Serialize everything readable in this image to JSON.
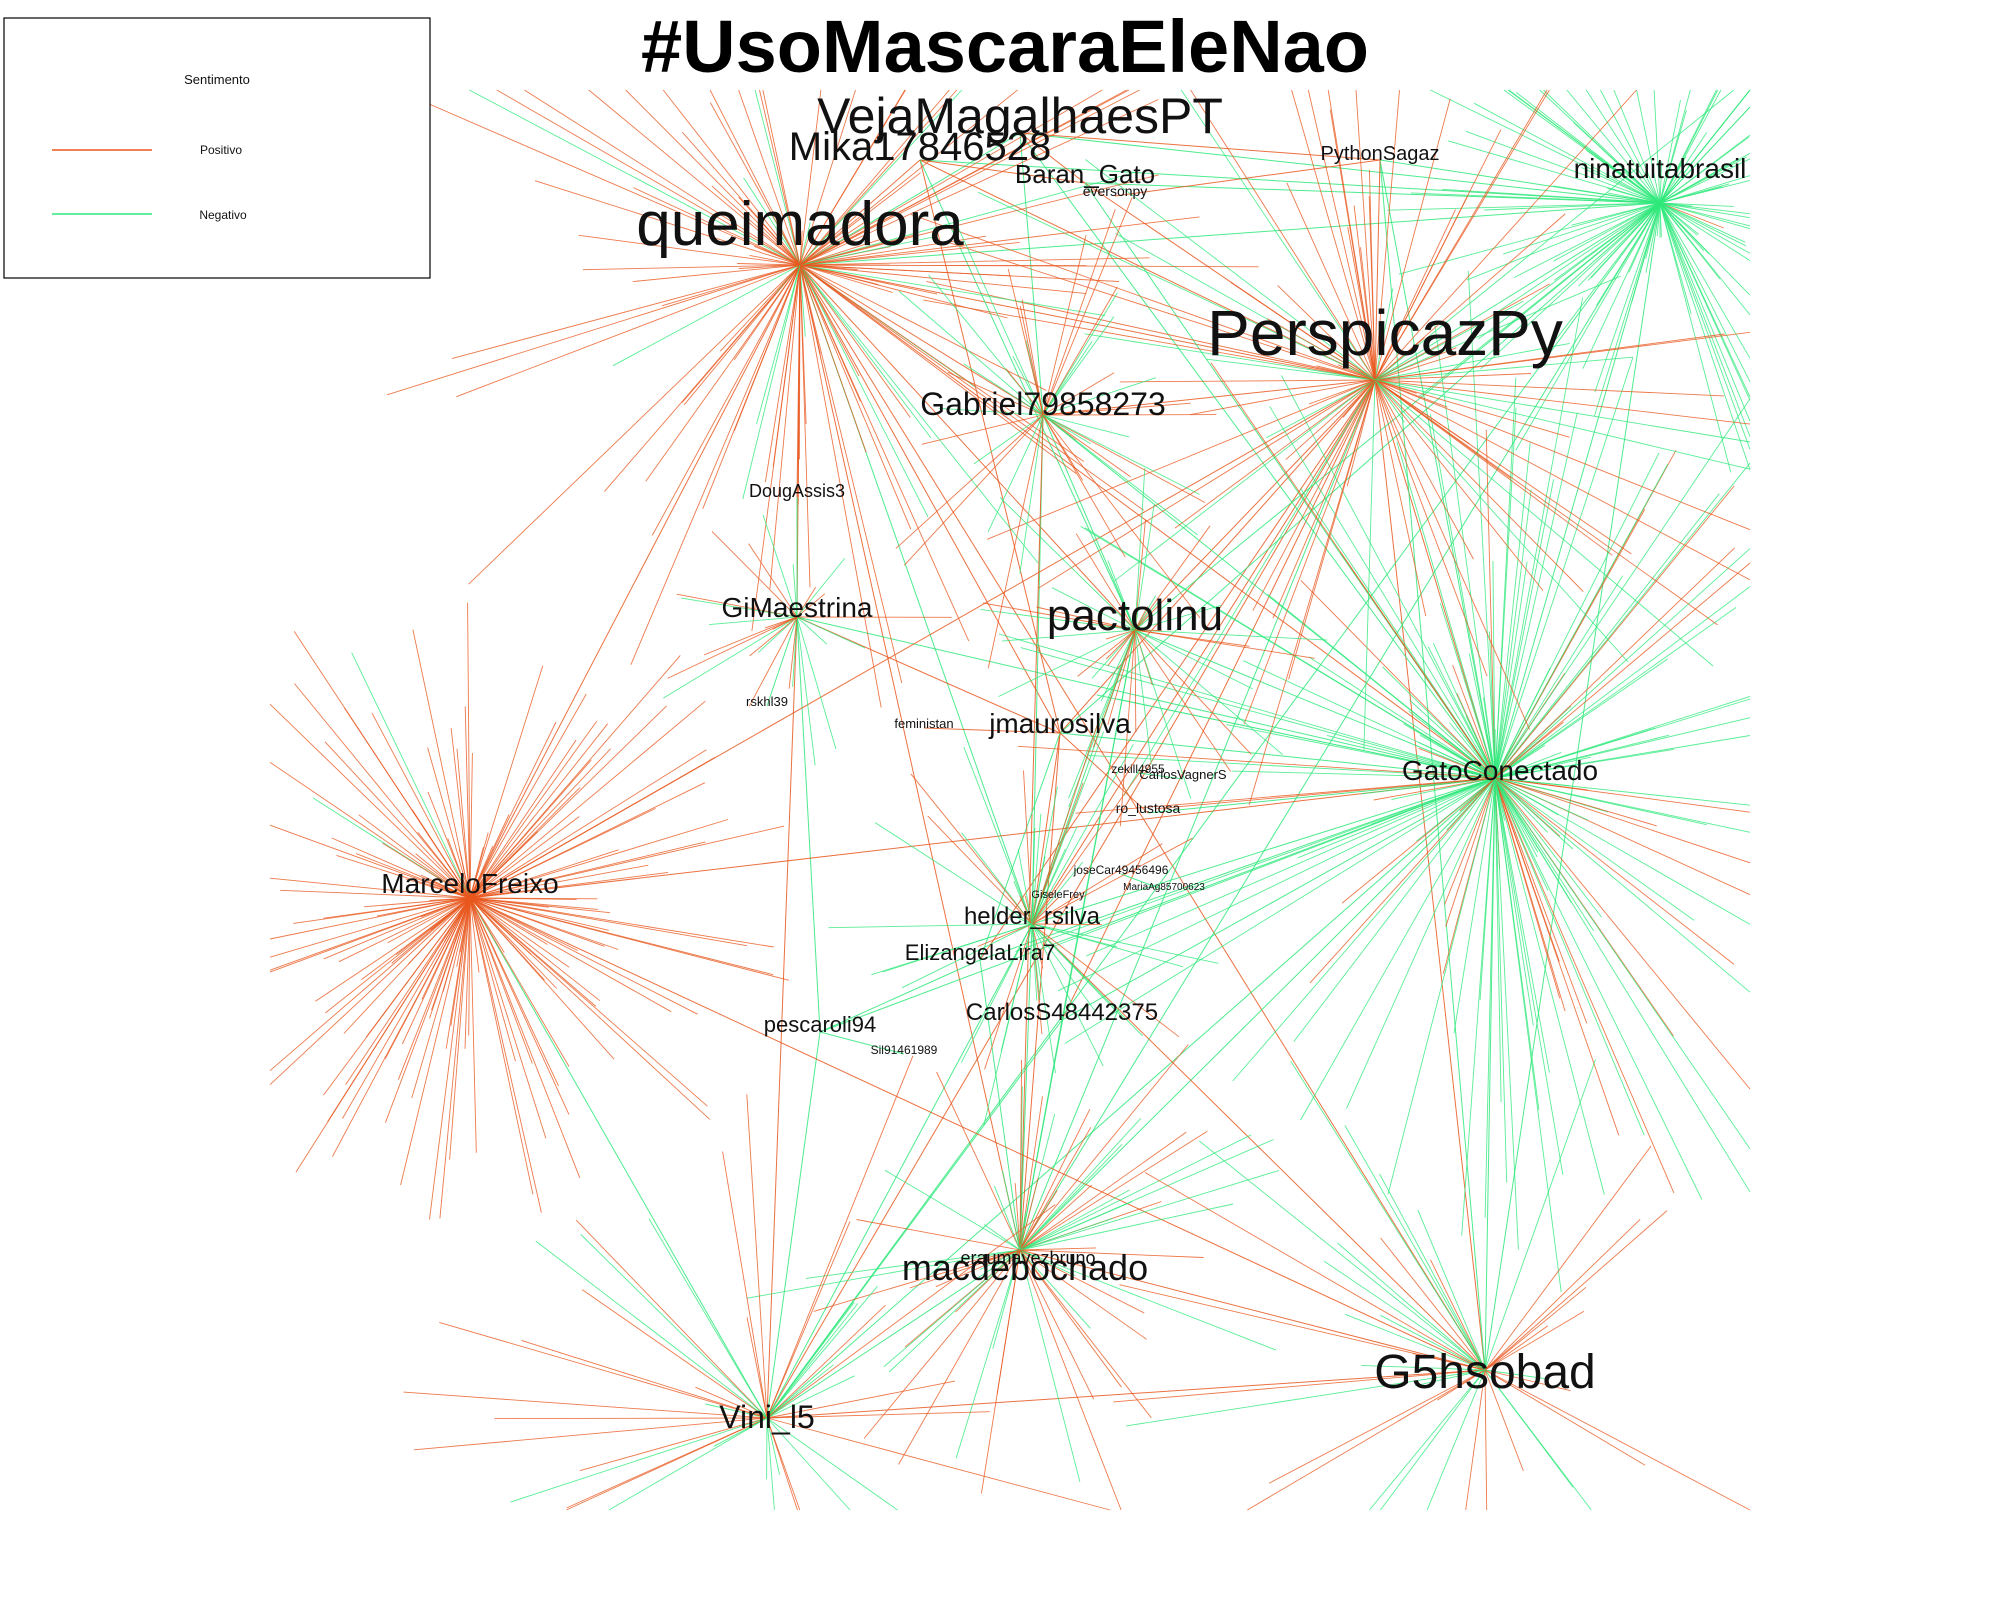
{
  "title": "#UsoMascaraEleNao",
  "legend": {
    "heading": "Sentimento",
    "items": [
      {
        "label": "Positivo",
        "color": "#e8581e"
      },
      {
        "label": "Negativo",
        "color": "#2ee87a"
      }
    ]
  },
  "colors": {
    "positive": "#e8581e",
    "negative": "#2ee87a",
    "background": "#ffffff"
  },
  "nodes": [
    {
      "id": "queimadora",
      "label": "queimadora"
    },
    {
      "id": "PerspicazPy",
      "label": "PerspicazPy"
    },
    {
      "id": "VejaMagalhaesPT",
      "label": "VejaMagalhaesPT"
    },
    {
      "id": "Mika17846528",
      "label": "Mika17846528"
    },
    {
      "id": "Baran_Gato",
      "label": "Baran_Gato"
    },
    {
      "id": "eversonpy",
      "label": "eversonpy"
    },
    {
      "id": "PythonSagaz",
      "label": "PythonSagaz"
    },
    {
      "id": "ninatuitabrasil",
      "label": "ninatuitabrasil"
    },
    {
      "id": "Gabriel79858273",
      "label": "Gabriel79858273"
    },
    {
      "id": "DougAssis3",
      "label": "DougAssis3"
    },
    {
      "id": "GiMaestrina",
      "label": "GiMaestrina"
    },
    {
      "id": "pactolinu",
      "label": "pactolinu"
    },
    {
      "id": "rskhl39",
      "label": "rskhl39"
    },
    {
      "id": "feministan",
      "label": "feministan"
    },
    {
      "id": "jmaurosilva",
      "label": "jmaurosilva"
    },
    {
      "id": "zekill4955",
      "label": "zekill4955"
    },
    {
      "id": "CarlosVagnerS",
      "label": "CarlosVagnerS"
    },
    {
      "id": "ro_lustosa",
      "label": "ro_lustosa"
    },
    {
      "id": "GatoConectado",
      "label": "GatoConectado"
    },
    {
      "id": "MarceloFreixo",
      "label": "MarceloFreixo"
    },
    {
      "id": "joseCar49456496",
      "label": "joseCar49456496"
    },
    {
      "id": "MariaAg",
      "label": "MariaAg85700623"
    },
    {
      "id": "GiseleFrey",
      "label": "GiseleFrey"
    },
    {
      "id": "helder_rsilva",
      "label": "helder_rsilva"
    },
    {
      "id": "ElizangelaLira7",
      "label": "ElizangelaLira7"
    },
    {
      "id": "pescaroli94",
      "label": "pescaroli94"
    },
    {
      "id": "CarlosS48442375",
      "label": "CarlosS48442375"
    },
    {
      "id": "Sil91461989",
      "label": "Sil91461989"
    },
    {
      "id": "eraumavezbruno",
      "label": "eraumavezbruno"
    },
    {
      "id": "macdebochado",
      "label": "macdebochado"
    },
    {
      "id": "G5hsobad",
      "label": "G5hsobad"
    },
    {
      "id": "Vini_l5",
      "label": "Vini_l5"
    }
  ],
  "edges": [
    [
      "queimadora",
      "PerspicazPy",
      "pos"
    ],
    [
      "queimadora",
      "GatoConectado",
      "pos"
    ],
    [
      "queimadora",
      "Mika17846528",
      "pos"
    ],
    [
      "queimadora",
      "VejaMagalhaesPT",
      "neg"
    ],
    [
      "queimadora",
      "Gabriel79858273",
      "pos"
    ],
    [
      "queimadora",
      "jmaurosilva",
      "pos"
    ],
    [
      "queimadora",
      "GiMaestrina",
      "pos"
    ],
    [
      "queimadora",
      "macdebochado",
      "pos"
    ],
    [
      "queimadora",
      "G5hsobad",
      "pos"
    ],
    [
      "queimadora",
      "helder_rsilva",
      "neg"
    ],
    [
      "queimadora",
      "pactolinu",
      "pos"
    ],
    [
      "queimadora",
      "ninatuitabrasil",
      "neg"
    ],
    [
      "PerspicazPy",
      "GatoConectado",
      "pos"
    ],
    [
      "PerspicazPy",
      "pactolinu",
      "pos"
    ],
    [
      "PerspicazPy",
      "jmaurosilva",
      "pos"
    ],
    [
      "PerspicazPy",
      "helder_rsilva",
      "pos"
    ],
    [
      "PerspicazPy",
      "CarlosS48442375",
      "pos"
    ],
    [
      "PerspicazPy",
      "macdebochado",
      "neg"
    ],
    [
      "PerspicazPy",
      "G5hsobad",
      "pos"
    ],
    [
      "PerspicazPy",
      "ninatuitabrasil",
      "neg"
    ],
    [
      "PerspicazPy",
      "Gabriel79858273",
      "pos"
    ],
    [
      "PerspicazPy",
      "Mika17846528",
      "pos"
    ],
    [
      "PerspicazPy",
      "Vini_l5",
      "pos"
    ],
    [
      "PerspicazPy",
      "ElizangelaLira7",
      "pos"
    ],
    [
      "GatoConectado",
      "ninatuitabrasil",
      "neg"
    ],
    [
      "GatoConectado",
      "pactolinu",
      "neg"
    ],
    [
      "GatoConectado",
      "jmaurosilva",
      "neg"
    ],
    [
      "GatoConectado",
      "helder_rsilva",
      "neg"
    ],
    [
      "GatoConectado",
      "ElizangelaLira7",
      "neg"
    ],
    [
      "GatoConectado",
      "CarlosS48442375",
      "neg"
    ],
    [
      "GatoConectado",
      "macdebochado",
      "neg"
    ],
    [
      "GatoConectado",
      "G5hsobad",
      "neg"
    ],
    [
      "GatoConectado",
      "Vini_l5",
      "neg"
    ],
    [
      "GatoConectado",
      "pescaroli94",
      "neg"
    ],
    [
      "GatoConectado",
      "GiMaestrina",
      "neg"
    ],
    [
      "GatoConectado",
      "Gabriel79858273",
      "neg"
    ],
    [
      "GatoConectado",
      "VejaMagalhaesPT",
      "neg"
    ],
    [
      "GatoConectado",
      "PythonSagaz",
      "neg"
    ],
    [
      "GatoConectado",
      "ro_lustosa",
      "neg"
    ],
    [
      "ninatuitabrasil",
      "VejaMagalhaesPT",
      "neg"
    ],
    [
      "ninatuitabrasil",
      "PythonSagaz",
      "neg"
    ],
    [
      "ninatuitabrasil",
      "Baran_Gato",
      "neg"
    ],
    [
      "ninatuitabrasil",
      "G5hsobad",
      "neg"
    ],
    [
      "ninatuitabrasil",
      "pactolinu",
      "neg"
    ],
    [
      "ninatuitabrasil",
      "macdebochado",
      "neg"
    ],
    [
      "ninatuitabrasil",
      "Vini_l5",
      "neg"
    ],
    [
      "ninatuitabrasil",
      "Mika17846528",
      "neg"
    ],
    [
      "ninatuitabrasil",
      "jmaurosilva",
      "neg"
    ],
    [
      "VejaMagalhaesPT",
      "Baran_Gato",
      "pos"
    ],
    [
      "VejaMagalhaesPT",
      "PythonSagaz",
      "pos"
    ],
    [
      "VejaMagalhaesPT",
      "Gabriel79858273",
      "neg"
    ],
    [
      "Mika17846528",
      "Baran_Gato",
      "pos"
    ],
    [
      "Mika17846528",
      "jmaurosilva",
      "pos"
    ],
    [
      "Mika17846528",
      "pactolinu",
      "neg"
    ],
    [
      "Baran_Gato",
      "PerspicazPy",
      "pos"
    ],
    [
      "Baran_Gato",
      "GatoConectado",
      "neg"
    ],
    [
      "eversonpy",
      "PythonSagaz",
      "pos"
    ],
    [
      "PythonSagaz",
      "G5hsobad",
      "neg"
    ],
    [
      "PythonSagaz",
      "PerspicazPy",
      "pos"
    ],
    [
      "Gabriel79858273",
      "helder_rsilva",
      "neg"
    ],
    [
      "Gabriel79858273",
      "pactolinu",
      "neg"
    ],
    [
      "Gabriel79858273",
      "macdebochado",
      "pos"
    ],
    [
      "DougAssis3",
      "GiMaestrina",
      "neg"
    ],
    [
      "DougAssis3",
      "queimadora",
      "pos"
    ],
    [
      "GiMaestrina",
      "Vini_l5",
      "pos"
    ],
    [
      "GiMaestrina",
      "pescaroli94",
      "neg"
    ],
    [
      "GiMaestrina",
      "jmaurosilva",
      "pos"
    ],
    [
      "pactolinu",
      "helder_rsilva",
      "neg"
    ],
    [
      "pactolinu",
      "CarlosS48442375",
      "neg"
    ],
    [
      "pactolinu",
      "macdebochado",
      "neg"
    ],
    [
      "jmaurosilva",
      "helder_rsilva",
      "pos"
    ],
    [
      "jmaurosilva",
      "macdebochado",
      "pos"
    ],
    [
      "jmaurosilva",
      "ElizangelaLira7",
      "neg"
    ],
    [
      "helder_rsilva",
      "macdebochado",
      "neg"
    ],
    [
      "helder_rsilva",
      "Vini_l5",
      "neg"
    ],
    [
      "helder_rsilva",
      "G5hsobad",
      "pos"
    ],
    [
      "ElizangelaLira7",
      "pescaroli94",
      "neg"
    ],
    [
      "ElizangelaLira7",
      "macdebochado",
      "neg"
    ],
    [
      "CarlosS48442375",
      "macdebochado",
      "neg"
    ],
    [
      "CarlosS48442375",
      "Vini_l5",
      "neg"
    ],
    [
      "pescaroli94",
      "Vini_l5",
      "neg"
    ],
    [
      "macdebochado",
      "G5hsobad",
      "pos"
    ],
    [
      "macdebochado",
      "Vini_l5",
      "neg"
    ],
    [
      "Vini_l5",
      "G5hsobad",
      "pos"
    ],
    [
      "MarceloFreixo",
      "G5hsobad",
      "pos"
    ],
    [
      "MarceloFreixo",
      "queimadora",
      "pos"
    ],
    [
      "MarceloFreixo",
      "GatoConectado",
      "pos"
    ],
    [
      "MarceloFreixo",
      "Vini_l5",
      "neg"
    ],
    [
      "MarceloFreixo",
      "PerspicazPy",
      "pos"
    ],
    [
      "feministan",
      "jmaurosilva",
      "pos"
    ],
    [
      "rskhl39",
      "GiMaestrina",
      "neg"
    ],
    [
      "eraumavezbruno",
      "macdebochado",
      "pos"
    ],
    [
      "Sil91461989",
      "pescaroli94",
      "neg"
    ],
    [
      "ro_lustosa",
      "jmaurosilva",
      "pos"
    ],
    [
      "zekill4955",
      "CarlosVagnerS",
      "neg"
    ],
    [
      "joseCar49456496",
      "MariaAg",
      "neg"
    ],
    [
      "GiseleFrey",
      "helder_rsilva",
      "pos"
    ]
  ]
}
